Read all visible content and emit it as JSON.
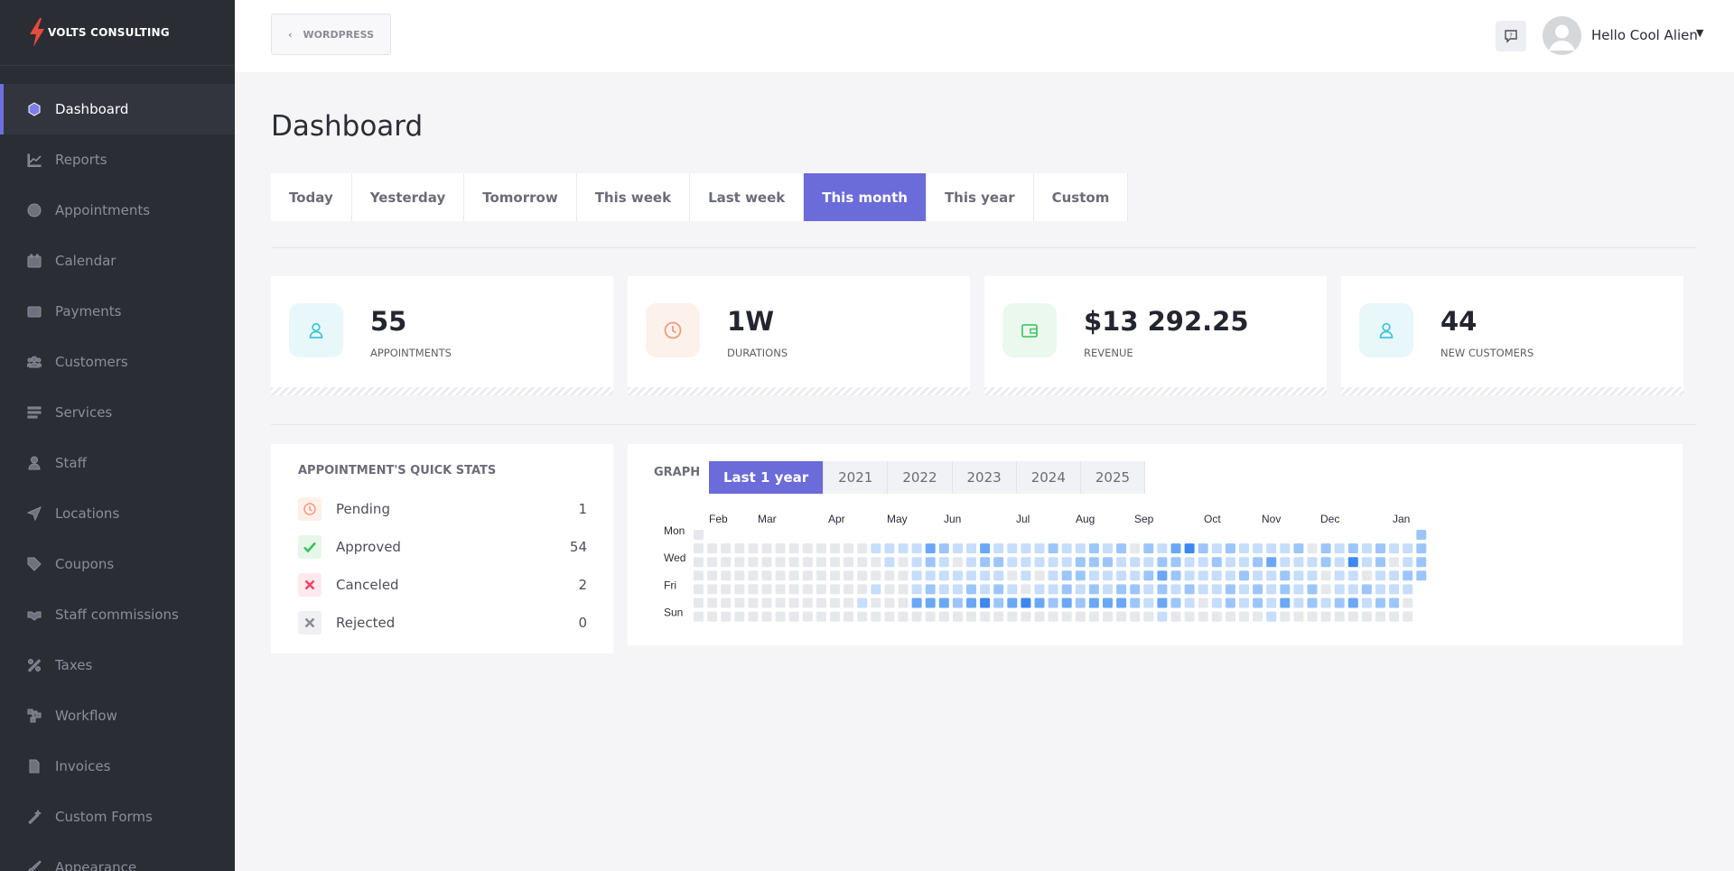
{
  "brand": {
    "name": "VOLTS CONSULTING"
  },
  "colors": {
    "accent": "#6b6bd9",
    "sidebar_bg": "#2b2d35",
    "heat_levels": [
      "#e7e8ec",
      "#c6ddfc",
      "#9cc6fb",
      "#6aa8f6",
      "#3c88ee"
    ]
  },
  "sidebar": {
    "items": [
      {
        "label": "Dashboard",
        "icon": "cube-icon",
        "active": true
      },
      {
        "label": "Reports",
        "icon": "chart-line-icon"
      },
      {
        "label": "Appointments",
        "icon": "clock-icon"
      },
      {
        "label": "Calendar",
        "icon": "calendar-icon"
      },
      {
        "label": "Payments",
        "icon": "wallet-icon"
      },
      {
        "label": "Customers",
        "icon": "users-icon"
      },
      {
        "label": "Services",
        "icon": "list-icon"
      },
      {
        "label": "Staff",
        "icon": "user-icon"
      },
      {
        "label": "Locations",
        "icon": "location-arrow-icon"
      },
      {
        "label": "Coupons",
        "icon": "tag-icon"
      },
      {
        "label": "Staff commissions",
        "icon": "handshake-icon"
      },
      {
        "label": "Taxes",
        "icon": "percent-icon"
      },
      {
        "label": "Workflow",
        "icon": "workflow-icon"
      },
      {
        "label": "Invoices",
        "icon": "file-icon"
      },
      {
        "label": "Custom Forms",
        "icon": "magic-wand-icon"
      },
      {
        "label": "Appearance",
        "icon": "brush-icon"
      }
    ]
  },
  "topbar": {
    "back_label": "WORDPRESS",
    "user_greeting": "Hello Cool Alien"
  },
  "page": {
    "title": "Dashboard"
  },
  "range_tabs": [
    "Today",
    "Yesterday",
    "Tomorrow",
    "This week",
    "Last week",
    "This month",
    "This year",
    "Custom"
  ],
  "range_selected": "This month",
  "stats": [
    {
      "value": "55",
      "label": "APPOINTMENTS",
      "icon": "user-icon",
      "color": "#3cc5d8",
      "bg": "#e8f8fa"
    },
    {
      "value": "1W",
      "label": "DURATIONS",
      "icon": "clock-icon",
      "color": "#f39a7c",
      "bg": "#fdf1ec"
    },
    {
      "value": "$13 292.25",
      "label": "REVENUE",
      "icon": "wallet-icon",
      "color": "#4cc96d",
      "bg": "#ebf8ee"
    },
    {
      "value": "44",
      "label": "NEW CUSTOMERS",
      "icon": "user-icon",
      "color": "#3cc5d8",
      "bg": "#e8f8fa"
    }
  ],
  "quick_stats": {
    "title": "APPOINTMENT'S QUICK STATS",
    "rows": [
      {
        "label": "Pending",
        "count": "1",
        "icon": "clock-icon",
        "color": "#f39a7c",
        "bg": "#fdf0eb"
      },
      {
        "label": "Approved",
        "count": "54",
        "icon": "check-icon",
        "color": "#35c25e",
        "bg": "#e6f7ea"
      },
      {
        "label": "Canceled",
        "count": "2",
        "icon": "x-icon",
        "color": "#f0436b",
        "bg": "#fde9ee"
      },
      {
        "label": "Rejected",
        "count": "0",
        "icon": "x-icon",
        "color": "#8a8d96",
        "bg": "#eef0f3"
      }
    ]
  },
  "graph": {
    "label": "GRAPH",
    "year_tabs": [
      "Last 1 year",
      "2021",
      "2022",
      "2023",
      "2024",
      "2025"
    ],
    "selected": "Last 1 year",
    "months": [
      "Feb",
      "Mar",
      "Apr",
      "May",
      "Jun",
      "Jul",
      "Aug",
      "Sep",
      "Oct",
      "Nov",
      "Dec",
      "Jan"
    ],
    "day_labels": [
      "Mon",
      "Wed",
      "Fri",
      "Sun"
    ]
  },
  "chart_data": {
    "type": "heatmap",
    "title": "",
    "x_labels": [
      "Feb",
      "Mar",
      "Apr",
      "May",
      "Jun",
      "Jul",
      "Aug",
      "Sep",
      "Oct",
      "Nov",
      "Dec",
      "Jan"
    ],
    "y_labels": [
      "Mon",
      "Wed",
      "Fri",
      "Sun"
    ],
    "weeks": [
      [
        0,
        0,
        0,
        0,
        0,
        0,
        0
      ],
      [
        -1,
        0,
        0,
        0,
        0,
        0,
        0
      ],
      [
        -1,
        0,
        0,
        0,
        0,
        0,
        0
      ],
      [
        -1,
        0,
        0,
        0,
        0,
        0,
        0
      ],
      [
        -1,
        0,
        0,
        0,
        0,
        0,
        0
      ],
      [
        -1,
        0,
        0,
        0,
        0,
        0,
        0
      ],
      [
        -1,
        0,
        0,
        0,
        0,
        0,
        0
      ],
      [
        -1,
        0,
        0,
        0,
        0,
        0,
        0
      ],
      [
        -1,
        0,
        0,
        0,
        0,
        0,
        0
      ],
      [
        -1,
        0,
        0,
        0,
        0,
        0,
        0
      ],
      [
        -1,
        0,
        0,
        0,
        0,
        0,
        0
      ],
      [
        -1,
        0,
        0,
        0,
        0,
        0,
        0
      ],
      [
        -1,
        0,
        0,
        0,
        0,
        1,
        0
      ],
      [
        -1,
        1,
        0,
        0,
        1,
        0,
        0
      ],
      [
        -1,
        1,
        1,
        0,
        0,
        0,
        0
      ],
      [
        -1,
        1,
        0,
        0,
        0,
        0,
        0
      ],
      [
        -1,
        1,
        1,
        1,
        1,
        3,
        0
      ],
      [
        -1,
        3,
        2,
        1,
        2,
        3,
        0
      ],
      [
        -1,
        2,
        1,
        1,
        1,
        3,
        0
      ],
      [
        -1,
        1,
        0,
        1,
        1,
        2,
        0
      ],
      [
        -1,
        1,
        1,
        1,
        2,
        3,
        0
      ],
      [
        -1,
        3,
        2,
        1,
        1,
        4,
        0
      ],
      [
        -1,
        1,
        2,
        1,
        2,
        2,
        0
      ],
      [
        -1,
        1,
        1,
        0,
        1,
        3,
        0
      ],
      [
        -1,
        1,
        1,
        1,
        0,
        4,
        0
      ],
      [
        -1,
        1,
        1,
        0,
        1,
        3,
        0
      ],
      [
        -1,
        2,
        1,
        1,
        1,
        2,
        0
      ],
      [
        -1,
        1,
        1,
        2,
        2,
        3,
        0
      ],
      [
        -1,
        1,
        2,
        2,
        1,
        2,
        0
      ],
      [
        -1,
        2,
        2,
        1,
        2,
        3,
        0
      ],
      [
        -1,
        1,
        2,
        1,
        1,
        3,
        0
      ],
      [
        -1,
        2,
        1,
        1,
        2,
        3,
        0
      ],
      [
        -1,
        0,
        1,
        1,
        2,
        2,
        0
      ],
      [
        -1,
        2,
        1,
        2,
        1,
        1,
        0
      ],
      [
        -1,
        1,
        2,
        3,
        2,
        3,
        1
      ],
      [
        -1,
        3,
        2,
        2,
        1,
        2,
        0
      ],
      [
        -1,
        4,
        1,
        1,
        2,
        1,
        0
      ],
      [
        -1,
        2,
        1,
        1,
        1,
        0,
        0
      ],
      [
        -1,
        1,
        2,
        1,
        1,
        1,
        0
      ],
      [
        -1,
        2,
        1,
        1,
        2,
        2,
        0
      ],
      [
        -1,
        1,
        1,
        2,
        1,
        1,
        0
      ],
      [
        -1,
        1,
        2,
        1,
        2,
        2,
        0
      ],
      [
        -1,
        1,
        3,
        1,
        1,
        1,
        1
      ],
      [
        -1,
        1,
        1,
        2,
        2,
        3,
        0
      ],
      [
        -1,
        2,
        1,
        1,
        1,
        1,
        0
      ],
      [
        -1,
        0,
        1,
        1,
        2,
        2,
        0
      ],
      [
        -1,
        2,
        2,
        0,
        0,
        1,
        0
      ],
      [
        -1,
        1,
        1,
        1,
        1,
        2,
        0
      ],
      [
        -1,
        2,
        4,
        1,
        1,
        3,
        0
      ],
      [
        -1,
        1,
        1,
        0,
        2,
        1,
        0
      ],
      [
        -1,
        2,
        2,
        1,
        1,
        2,
        0
      ],
      [
        -1,
        1,
        0,
        1,
        1,
        2,
        0
      ],
      [
        -1,
        1,
        1,
        2,
        1,
        0,
        0
      ],
      [
        2,
        2,
        2,
        2,
        -1,
        -1,
        -1
      ]
    ]
  }
}
